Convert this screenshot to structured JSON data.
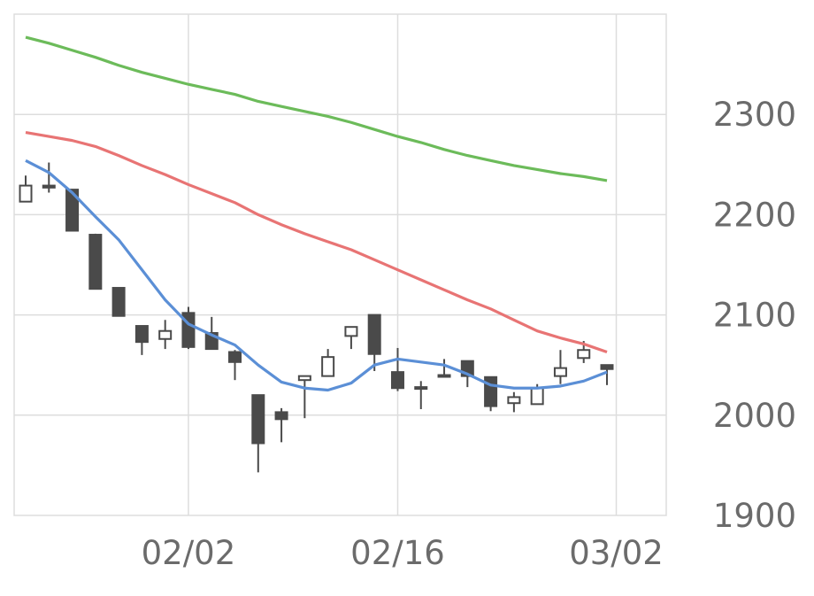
{
  "chart_data": {
    "type": "candlestick",
    "ylim": [
      1900,
      2400
    ],
    "y_ticks": [
      1900,
      2000,
      2100,
      2200,
      2300
    ],
    "y_axis_position": "right",
    "grid": true,
    "x_ticks": [
      {
        "label": "02/02",
        "index": 7
      },
      {
        "label": "02/16",
        "index": 16
      },
      {
        "label": "03/02",
        "index": 25.4
      }
    ],
    "colors": {
      "up": "#ffffff",
      "down": "#4a4a4a",
      "outline": "#4a4a4a",
      "ma_short": "#5b8fd6",
      "ma_mid": "#e87474",
      "ma_long": "#6cbb5a",
      "grid": "#dddddd"
    },
    "candles": [
      {
        "o": 2213,
        "h": 2239,
        "l": 2213,
        "c": 2229
      },
      {
        "o": 2229,
        "h": 2252,
        "l": 2222,
        "c": 2227
      },
      {
        "o": 2225,
        "h": 2225,
        "l": 2184,
        "c": 2184
      },
      {
        "o": 2180,
        "h": 2181,
        "l": 2126,
        "c": 2126
      },
      {
        "o": 2127,
        "h": 2127,
        "l": 2099,
        "c": 2099
      },
      {
        "o": 2089,
        "h": 2089,
        "l": 2060,
        "c": 2073
      },
      {
        "o": 2076,
        "h": 2095,
        "l": 2066,
        "c": 2084
      },
      {
        "o": 2102,
        "h": 2108,
        "l": 2066,
        "c": 2068
      },
      {
        "o": 2082,
        "h": 2098,
        "l": 2066,
        "c": 2066
      },
      {
        "o": 2063,
        "h": 2065,
        "l": 2035,
        "c": 2053
      },
      {
        "o": 2020,
        "h": 2020,
        "l": 1943,
        "c": 1972
      },
      {
        "o": 2003,
        "h": 2007,
        "l": 1973,
        "c": 1996
      },
      {
        "o": 2035,
        "h": 2039,
        "l": 1997,
        "c": 2039
      },
      {
        "o": 2039,
        "h": 2066,
        "l": 2039,
        "c": 2058
      },
      {
        "o": 2079,
        "h": 2088,
        "l": 2066,
        "c": 2088
      },
      {
        "o": 2100,
        "h": 2100,
        "l": 2044,
        "c": 2061
      },
      {
        "o": 2043,
        "h": 2067,
        "l": 2024,
        "c": 2027
      },
      {
        "o": 2028,
        "h": 2034,
        "l": 2006,
        "c": 2027
      },
      {
        "o": 2040,
        "h": 2056,
        "l": 2039,
        "c": 2039
      },
      {
        "o": 2054,
        "h": 2054,
        "l": 2028,
        "c": 2039
      },
      {
        "o": 2038,
        "h": 2038,
        "l": 2004,
        "c": 2009
      },
      {
        "o": 2012,
        "h": 2023,
        "l": 2003,
        "c": 2018
      },
      {
        "o": 2011,
        "h": 2031,
        "l": 2011,
        "c": 2027
      },
      {
        "o": 2039,
        "h": 2065,
        "l": 2031,
        "c": 2047
      },
      {
        "o": 2057,
        "h": 2074,
        "l": 2052,
        "c": 2065
      },
      {
        "o": 2050,
        "h": 2050,
        "l": 2030,
        "c": 2046
      }
    ],
    "series": [
      {
        "key": "ma_short",
        "values": [
          2254,
          2242,
          2222,
          2198,
          2175,
          2145,
          2115,
          2091,
          2080,
          2070,
          2050,
          2033,
          2027,
          2025,
          2032,
          2050,
          2056,
          2053,
          2050,
          2041,
          2030,
          2027,
          2027,
          2029,
          2034,
          2043
        ]
      },
      {
        "key": "ma_mid",
        "values": [
          2282,
          2278,
          2274,
          2268,
          2259,
          2249,
          2240,
          2230,
          2221,
          2212,
          2200,
          2190,
          2181,
          2173,
          2165,
          2155,
          2145,
          2135,
          2125,
          2115,
          2106,
          2095,
          2084,
          2077,
          2071,
          2063
        ]
      },
      {
        "key": "ma_long",
        "values": [
          2377,
          2371,
          2364,
          2357,
          2349,
          2342,
          2336,
          2330,
          2325,
          2320,
          2313,
          2308,
          2303,
          2298,
          2292,
          2285,
          2278,
          2272,
          2265,
          2259,
          2254,
          2249,
          2245,
          2241,
          2238,
          2234
        ]
      }
    ]
  }
}
